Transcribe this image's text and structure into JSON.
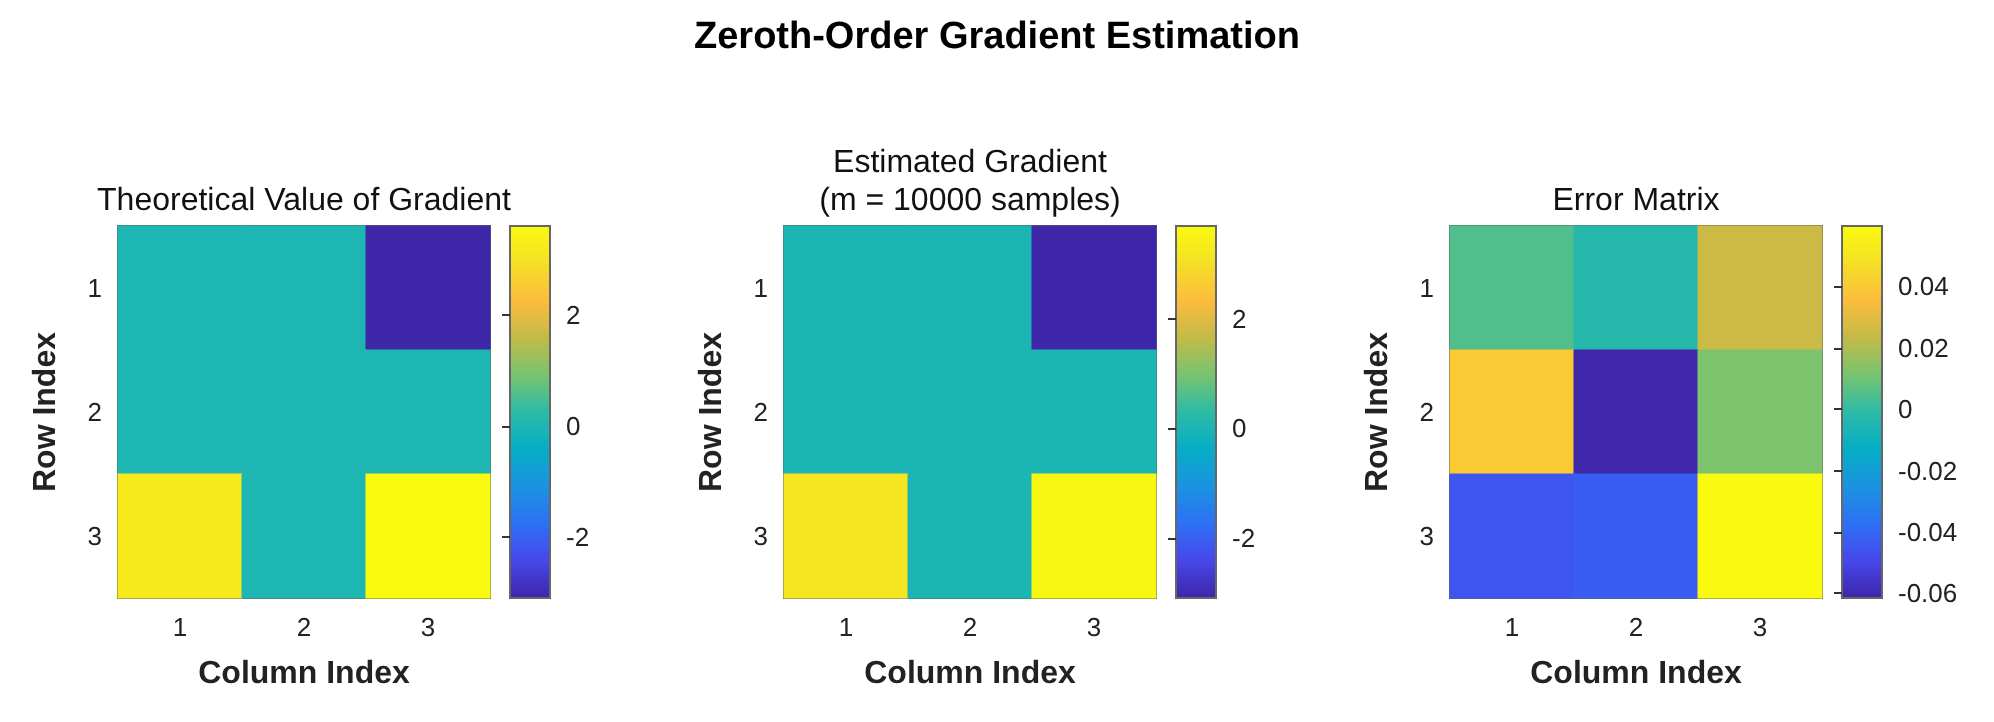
{
  "chart_data": [
    {
      "type": "heatmap",
      "title": "Theoretical Value of Gradient",
      "annotations": [
        "Zeroth-Order Gradient Estimation"
      ],
      "xlabel": "Column Index",
      "ylabel": "Row Index",
      "categories": [
        "1",
        "2",
        "3"
      ],
      "y_categories": [
        "1",
        "2",
        "3"
      ],
      "cells": [
        [
          0,
          0,
          -3.1
        ],
        [
          0,
          0,
          0
        ],
        [
          3.2,
          0,
          3.6
        ]
      ],
      "clim": [
        -3.1,
        3.6
      ],
      "cticks": [
        -2,
        0,
        2
      ]
    },
    {
      "type": "heatmap",
      "title": "Estimated Gradient (m = 10000 samples)",
      "xlabel": "Column Index",
      "ylabel": "Row Index",
      "categories": [
        "1",
        "2",
        "3"
      ],
      "y_categories": [
        "1",
        "2",
        "3"
      ],
      "cells": [
        [
          0,
          0,
          -3.1
        ],
        [
          0,
          0,
          0
        ],
        [
          3.2,
          0,
          3.6
        ]
      ],
      "clim": [
        -3.1,
        3.7
      ],
      "cticks": [
        -2,
        0,
        2
      ]
    },
    {
      "type": "heatmap",
      "title": "Error Matrix",
      "xlabel": "Column Index",
      "ylabel": "Row Index",
      "categories": [
        "1",
        "2",
        "3"
      ],
      "y_categories": [
        "1",
        "2",
        "3"
      ],
      "cells": [
        [
          0.005,
          -0.003,
          0.025
        ],
        [
          0.04,
          -0.061,
          0.012
        ],
        [
          -0.045,
          -0.043,
          0.059
        ]
      ],
      "clim": [
        -0.0615,
        0.0596
      ],
      "cticks": [
        -0.06,
        -0.04,
        -0.02,
        0,
        0.02,
        0.04
      ]
    }
  ]
}
